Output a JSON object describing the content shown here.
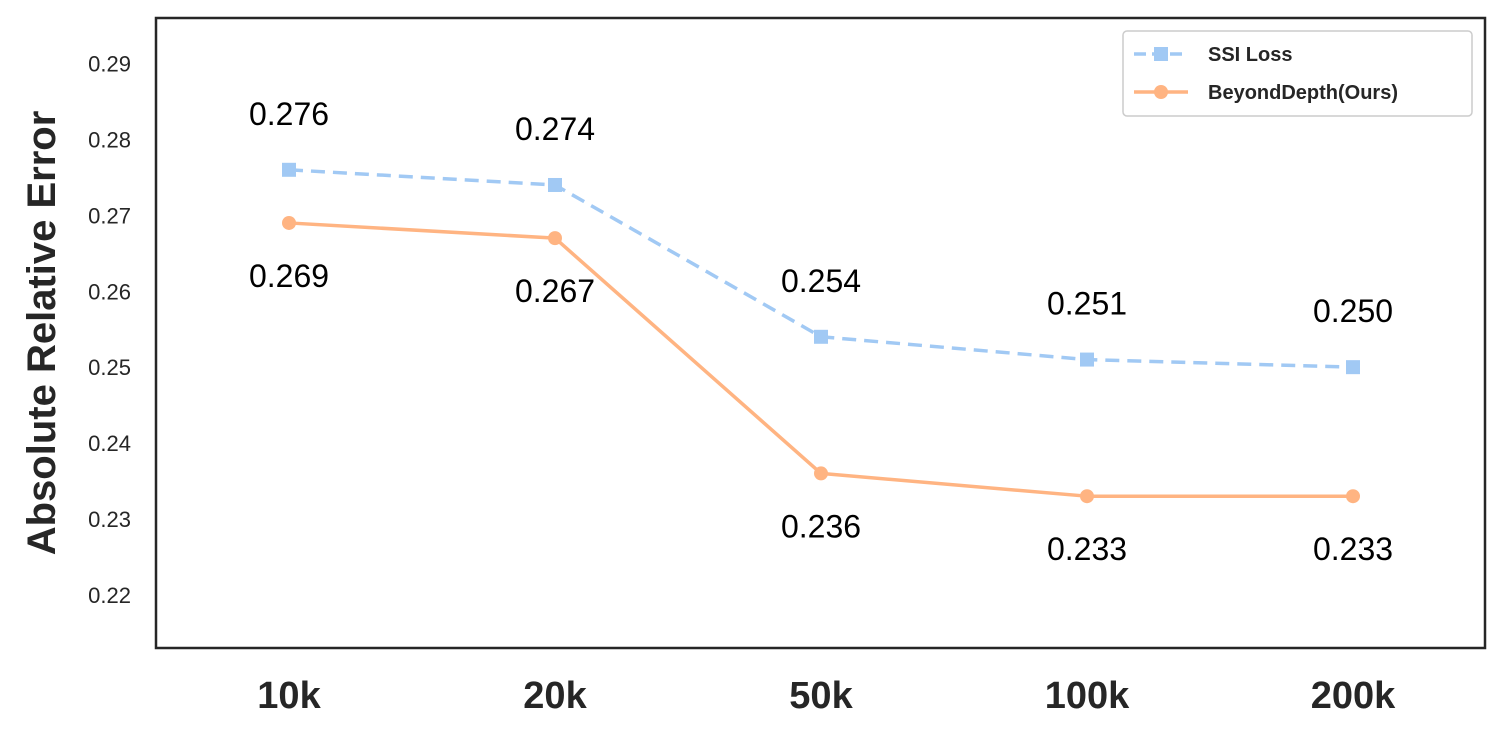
{
  "chart_data": {
    "type": "line",
    "title": "",
    "xlabel": "",
    "ylabel": "Absolute Relative Error",
    "categories": [
      "10k",
      "20k",
      "50k",
      "100k",
      "200k"
    ],
    "yticks": [
      "0.22",
      "0.23",
      "0.24",
      "0.25",
      "0.26",
      "0.27",
      "0.28",
      "0.29"
    ],
    "ylim": [
      0.213,
      0.296
    ],
    "grid": false,
    "legend_position": "top-right",
    "series": [
      {
        "name": "SSI Loss",
        "values": [
          0.276,
          0.274,
          0.254,
          0.251,
          0.25
        ],
        "labels": [
          "0.276",
          "0.274",
          "0.254",
          "0.251",
          "0.250"
        ],
        "color": "#a1c9f4",
        "line_style": "dashed",
        "marker": "square",
        "label_placement": "above"
      },
      {
        "name": "BeyondDepth(Ours)",
        "values": [
          0.269,
          0.267,
          0.236,
          0.233,
          0.233
        ],
        "labels": [
          "0.269",
          "0.267",
          "0.236",
          "0.233",
          "0.233"
        ],
        "color": "#ffb482",
        "line_style": "solid",
        "marker": "circle",
        "label_placement": "below"
      }
    ]
  }
}
